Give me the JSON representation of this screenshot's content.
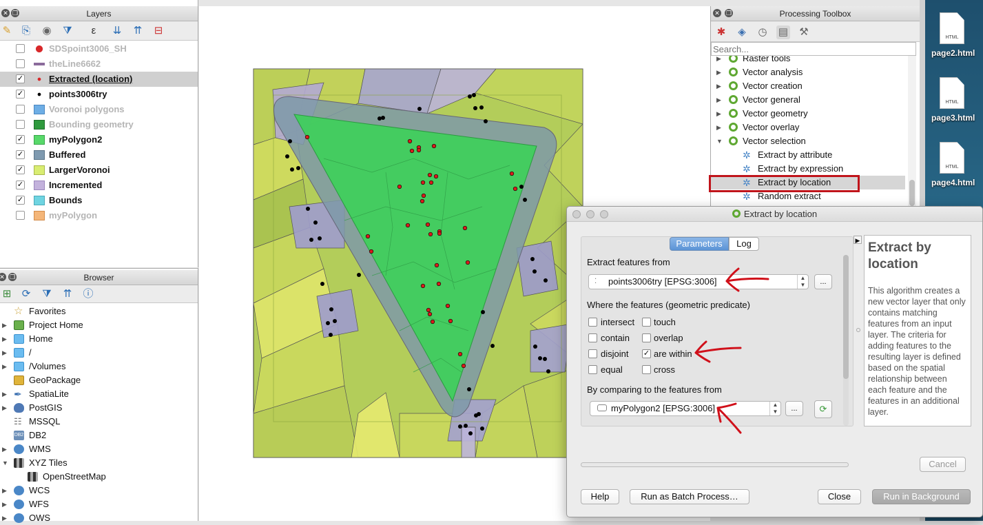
{
  "layers_panel": {
    "title": "Layers",
    "layers": [
      {
        "name": "SDSpoint3006_SH",
        "checked": false,
        "symbol": "red-dot",
        "dim": true
      },
      {
        "name": "theLine6662",
        "checked": false,
        "symbol": "purple-line",
        "dim": true
      },
      {
        "name": "Extracted (location)",
        "checked": true,
        "symbol": "small-red-dot",
        "dim": false,
        "selected": true
      },
      {
        "name": "points3006try",
        "checked": true,
        "symbol": "black-dot",
        "dim": false
      },
      {
        "name": "Voronoi polygons",
        "checked": false,
        "symbol": "blue-fill",
        "dim": true
      },
      {
        "name": "Bounding geometry",
        "checked": false,
        "symbol": "green-fill",
        "dim": true
      },
      {
        "name": "myPolygon2",
        "checked": true,
        "symbol": "light-green-fill",
        "dim": false
      },
      {
        "name": "Buffered",
        "checked": true,
        "symbol": "slate-fill",
        "dim": false
      },
      {
        "name": "LargerVoronoi",
        "checked": true,
        "symbol": "yellow-fill",
        "dim": false
      },
      {
        "name": "Incremented",
        "checked": true,
        "symbol": "lavender-fill",
        "dim": false
      },
      {
        "name": "Bounds",
        "checked": true,
        "symbol": "cyan-fill",
        "dim": false
      },
      {
        "name": "myPolygon",
        "checked": false,
        "symbol": "orange-fill",
        "dim": true
      }
    ]
  },
  "browser_panel": {
    "title": "Browser",
    "items": [
      {
        "label": "Favorites",
        "icon": "star-icon"
      },
      {
        "label": "Project Home",
        "icon": "project-icon"
      },
      {
        "label": "Home",
        "icon": "folder-icon"
      },
      {
        "label": "/",
        "icon": "folder-icon"
      },
      {
        "label": "/Volumes",
        "icon": "folder-icon"
      },
      {
        "label": "GeoPackage",
        "icon": "geopackage-icon"
      },
      {
        "label": "SpatiaLite",
        "icon": "spatialite-icon"
      },
      {
        "label": "PostGIS",
        "icon": "postgis-icon"
      },
      {
        "label": "MSSQL",
        "icon": "mssql-icon"
      },
      {
        "label": "DB2",
        "icon": "db2-icon"
      },
      {
        "label": "WMS",
        "icon": "globe-icon"
      },
      {
        "label": "XYZ Tiles",
        "icon": "tiles-icon"
      },
      {
        "label": "OpenStreetMap",
        "icon": "osm-icon"
      },
      {
        "label": "WCS",
        "icon": "globe-icon"
      },
      {
        "label": "WFS",
        "icon": "globe-icon"
      },
      {
        "label": "OWS",
        "icon": "globe-icon"
      }
    ],
    "db2_badge": "DB2"
  },
  "toolbox": {
    "title": "Processing Toolbox",
    "search_placeholder": "Search...",
    "groups": [
      "Raster tools",
      "Vector analysis",
      "Vector creation",
      "Vector general",
      "Vector geometry",
      "Vector overlay",
      "Vector selection"
    ],
    "algorithms": [
      "Extract by attribute",
      "Extract by expression",
      "Extract by location",
      "Random extract"
    ]
  },
  "dialog": {
    "title": "Extract by location",
    "tabs": {
      "parameters": "Parameters",
      "log": "Log"
    },
    "extract_label": "Extract features from",
    "extract_value": "points3006try [EPSG:3006]",
    "predicate_label": "Where the features (geometric predicate)",
    "predicates": {
      "intersect": "intersect",
      "touch": "touch",
      "contain": "contain",
      "overlap": "overlap",
      "disjoint": "disjoint",
      "are_within": "are within",
      "equal": "equal",
      "cross": "cross"
    },
    "compare_label": "By comparing to the features from",
    "compare_value": "myPolygon2 [EPSG:3006]",
    "ellipsis": "...",
    "help_title": "Extract by location",
    "help_text": "This algorithm creates a new vector layer that only contains matching features from an input layer. The criteria for adding features to the resulting layer is defined based on the spatial relationship between each feature and the features in an additional layer.",
    "buttons": {
      "cancel": "Cancel",
      "help": "Help",
      "batch": "Run as Batch Process…",
      "close": "Close",
      "run": "Run in Background"
    },
    "progress": 0
  },
  "desktop": {
    "files": [
      "page2.html",
      "page3.html",
      "page4.html"
    ],
    "file_badge": "HTML"
  },
  "colors": {
    "highlight_box": "#c0141b",
    "annotation_arrow": "#d0101a"
  }
}
